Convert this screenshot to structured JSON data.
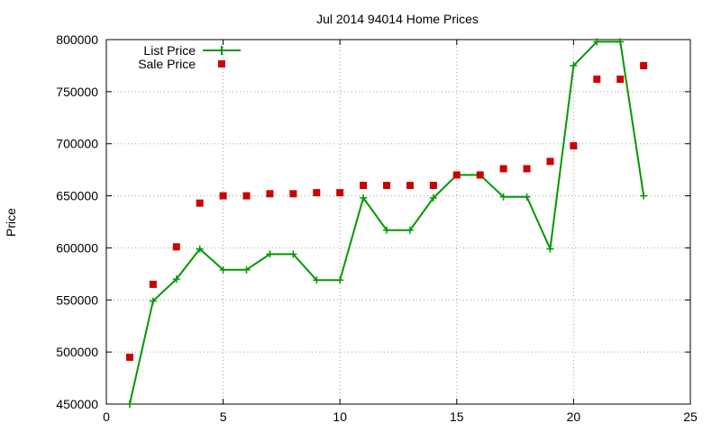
{
  "chart_data": {
    "type": "line",
    "title": "Jul 2014 94014 Home Prices",
    "xlabel": "",
    "ylabel": "Price",
    "xlim": [
      0,
      25
    ],
    "ylim": [
      450000,
      800000
    ],
    "x_ticks": [
      0,
      5,
      10,
      15,
      20,
      25
    ],
    "y_ticks": [
      450000,
      500000,
      550000,
      600000,
      650000,
      700000,
      750000,
      800000
    ],
    "grid": true,
    "legend_position": "top-left",
    "series": [
      {
        "name": "List Price",
        "style": "line-plus",
        "color": "#009900",
        "x": [
          1,
          2,
          3,
          4,
          5,
          6,
          7,
          8,
          9,
          10,
          11,
          12,
          13,
          14,
          15,
          16,
          17,
          18,
          19,
          20,
          21,
          22,
          23
        ],
        "y": [
          450000,
          549000,
          570000,
          599000,
          579000,
          579000,
          594000,
          594000,
          569000,
          569000,
          648000,
          617000,
          617000,
          648000,
          670000,
          670000,
          649000,
          649000,
          599000,
          775000,
          798000,
          798000,
          650000
        ]
      },
      {
        "name": "Sale Price",
        "style": "points-square",
        "color": "#cc0000",
        "x": [
          1,
          2,
          3,
          4,
          5,
          6,
          7,
          8,
          9,
          10,
          11,
          12,
          13,
          14,
          15,
          16,
          17,
          18,
          19,
          20,
          21,
          22,
          23
        ],
        "y": [
          495000,
          565000,
          601000,
          643000,
          650000,
          650000,
          652000,
          652000,
          653000,
          653000,
          660000,
          660000,
          660000,
          660000,
          670000,
          670000,
          676000,
          676000,
          683000,
          698000,
          762000,
          762000,
          775000
        ]
      }
    ]
  }
}
